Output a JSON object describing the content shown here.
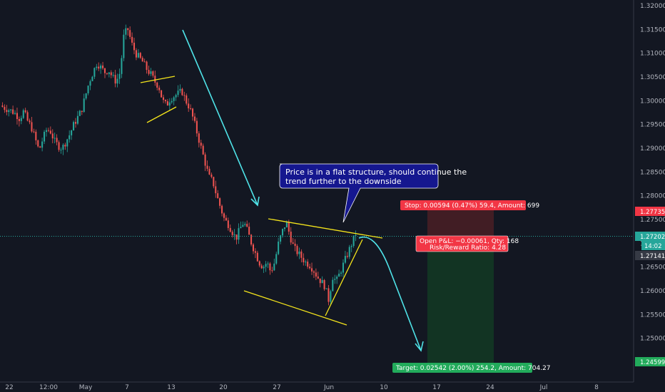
{
  "chart_data": {
    "type": "candlestick",
    "symbol": "",
    "y_axis": {
      "ticks": [
        "1.32000",
        "1.31500",
        "1.31000",
        "1.30500",
        "1.30000",
        "1.29500",
        "1.29000",
        "1.28500",
        "1.28000",
        "1.27500",
        "1.27000",
        "1.26500",
        "1.26000",
        "1.25500",
        "1.25000",
        "1.24500"
      ],
      "ylim": [
        1.2425,
        1.3215
      ]
    },
    "x_axis": {
      "ticks": [
        "22",
        "12:00",
        "May",
        "7",
        "13",
        "20",
        "27",
        "Jun",
        "10",
        "17",
        "24",
        "Jul",
        "8"
      ]
    },
    "price_badges": {
      "stop_level": "1.27735",
      "last_price": "1.27202",
      "countdown": "14:02",
      "entry_price": "1.27141",
      "target_level": "1.24599"
    },
    "position": {
      "stop_label": "Stop: 0.00594 (0.47%) 59.4, Amount: 699",
      "pnl_label": "Open P&L: −0.00061, Qty: 168",
      "rr_label": "Risk/Reward Ratio: 4.28",
      "target_label": "Target: 0.02542 (2.00%) 254.2, Amount: 704.27"
    },
    "callout": {
      "line1": "Price is in a flat structure, should continue the",
      "line2": "trend further to the downside"
    },
    "price_path": [
      1.299,
      1.2985,
      1.2982,
      1.2978,
      1.2972,
      1.2962,
      1.2978,
      1.2958,
      1.2945,
      1.292,
      1.2895,
      1.292,
      1.294,
      1.2935,
      1.2915,
      1.2905,
      1.29,
      1.2915,
      1.293,
      1.295,
      1.2965,
      1.298,
      1.301,
      1.304,
      1.306,
      1.308,
      1.307,
      1.306,
      1.3065,
      1.305,
      1.304,
      1.306,
      1.314,
      1.315,
      1.312,
      1.31,
      1.309,
      1.308,
      1.3065,
      1.3055,
      1.304,
      1.303,
      1.3,
      1.299,
      1.3005,
      1.301,
      1.3015,
      1.302,
      1.3,
      1.2985,
      1.296,
      1.293,
      1.29,
      1.287,
      1.284,
      1.283,
      1.28,
      1.2775,
      1.275,
      1.274,
      1.2725,
      1.271,
      1.273,
      1.2745,
      1.2725,
      1.27,
      1.268,
      1.266,
      1.265,
      1.266,
      1.264,
      1.266,
      1.27,
      1.2725,
      1.2745,
      1.2715,
      1.269,
      1.268,
      1.267,
      1.266,
      1.2655,
      1.2645,
      1.263,
      1.262,
      1.261,
      1.258,
      1.263,
      1.262,
      1.264,
      1.266,
      1.268,
      1.27,
      1.272
    ]
  }
}
